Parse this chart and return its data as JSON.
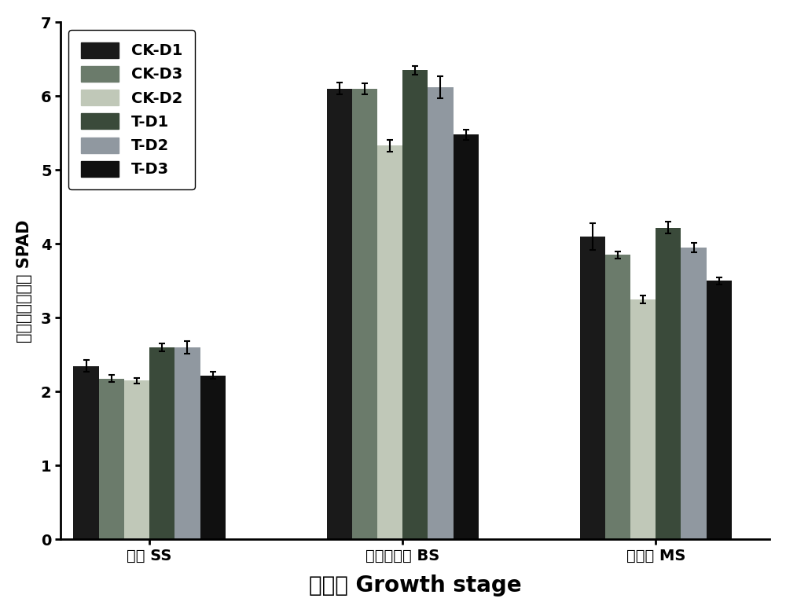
{
  "title": "",
  "xlabel": "生育期 Growth stage",
  "ylabel": "叶绿素相对含量 SPAD",
  "categories": [
    "苗期 SS",
    "大喇叭口期 BS",
    "成熟期 MS"
  ],
  "series": [
    {
      "label": "CK-D1",
      "color": "#1a1a1a",
      "values": [
        2.35,
        6.1,
        4.1
      ],
      "errors": [
        0.08,
        0.08,
        0.18
      ]
    },
    {
      "label": "CK-D3",
      "color": "#6b7b6b",
      "values": [
        2.18,
        6.1,
        3.85
      ],
      "errors": [
        0.05,
        0.07,
        0.05
      ]
    },
    {
      "label": "CK-D2",
      "color": "#c0c8b8",
      "values": [
        2.15,
        5.33,
        3.25
      ],
      "errors": [
        0.04,
        0.08,
        0.05
      ]
    },
    {
      "label": "T-D1",
      "color": "#3a4a3a",
      "values": [
        2.6,
        6.35,
        4.22
      ],
      "errors": [
        0.05,
        0.06,
        0.08
      ]
    },
    {
      "label": "T-D2",
      "color": "#9098a0",
      "values": [
        2.6,
        6.12,
        3.95
      ],
      "errors": [
        0.08,
        0.15,
        0.06
      ]
    },
    {
      "label": "T-D3",
      "color": "#101010",
      "values": [
        2.22,
        5.48,
        3.5
      ],
      "errors": [
        0.05,
        0.07,
        0.05
      ]
    }
  ],
  "ylim": [
    0,
    7
  ],
  "yticks": [
    0,
    1,
    2,
    3,
    4,
    5,
    6,
    7
  ],
  "bar_width": 0.1,
  "group_positions": [
    0.35,
    1.35,
    2.35
  ],
  "xlim": [
    0.0,
    2.8
  ],
  "legend_fontsize": 14,
  "tick_fontsize": 14,
  "xlabel_fontsize": 20,
  "ylabel_fontsize": 15
}
